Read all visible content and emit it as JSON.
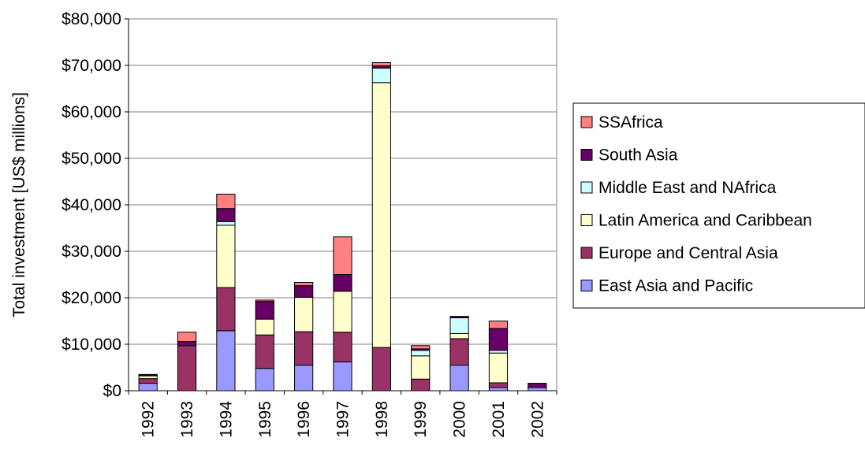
{
  "chart_data": {
    "type": "bar",
    "stacked": true,
    "title": "",
    "xlabel": "",
    "ylabel": "Total investment [US$ millions]",
    "ylim": [
      0,
      80000
    ],
    "yticks": [
      0,
      10000,
      20000,
      30000,
      40000,
      50000,
      60000,
      70000,
      80000
    ],
    "ytick_labels": [
      "$0",
      "$10,000",
      "$20,000",
      "$30,000",
      "$40,000",
      "$50,000",
      "$60,000",
      "$70,000",
      "$80,000"
    ],
    "grid": "horizontal",
    "legend_position": "right",
    "categories": [
      "1992",
      "1993",
      "1994",
      "1995",
      "1996",
      "1997",
      "1998",
      "1999",
      "2000",
      "2001",
      "2002"
    ],
    "series": [
      {
        "name": "East Asia and Pacific",
        "color": "#9999ff",
        "values": [
          1600,
          0,
          12900,
          4800,
          5500,
          6200,
          0,
          0,
          5500,
          700,
          700
        ]
      },
      {
        "name": "Europe and Central Asia",
        "color": "#993366",
        "values": [
          1000,
          9700,
          9300,
          7200,
          7200,
          6400,
          9300,
          2500,
          5700,
          1000,
          0
        ]
      },
      {
        "name": "Latin America and Caribbean",
        "color": "#ffffcc",
        "values": [
          600,
          0,
          13400,
          3400,
          7400,
          8800,
          57000,
          5000,
          1100,
          6400,
          0
        ]
      },
      {
        "name": "Middle East and NAfrica",
        "color": "#ccffff",
        "values": [
          0,
          0,
          800,
          0,
          0,
          0,
          3100,
          1200,
          3400,
          600,
          0
        ]
      },
      {
        "name": "South Asia",
        "color": "#660066",
        "values": [
          200,
          900,
          2800,
          3800,
          2500,
          3600,
          500,
          300,
          300,
          4700,
          900
        ]
      },
      {
        "name": "SSAfrica",
        "color": "#ff8080",
        "values": [
          100,
          2000,
          3100,
          300,
          700,
          8100,
          700,
          700,
          0,
          1600,
          0
        ]
      }
    ]
  }
}
